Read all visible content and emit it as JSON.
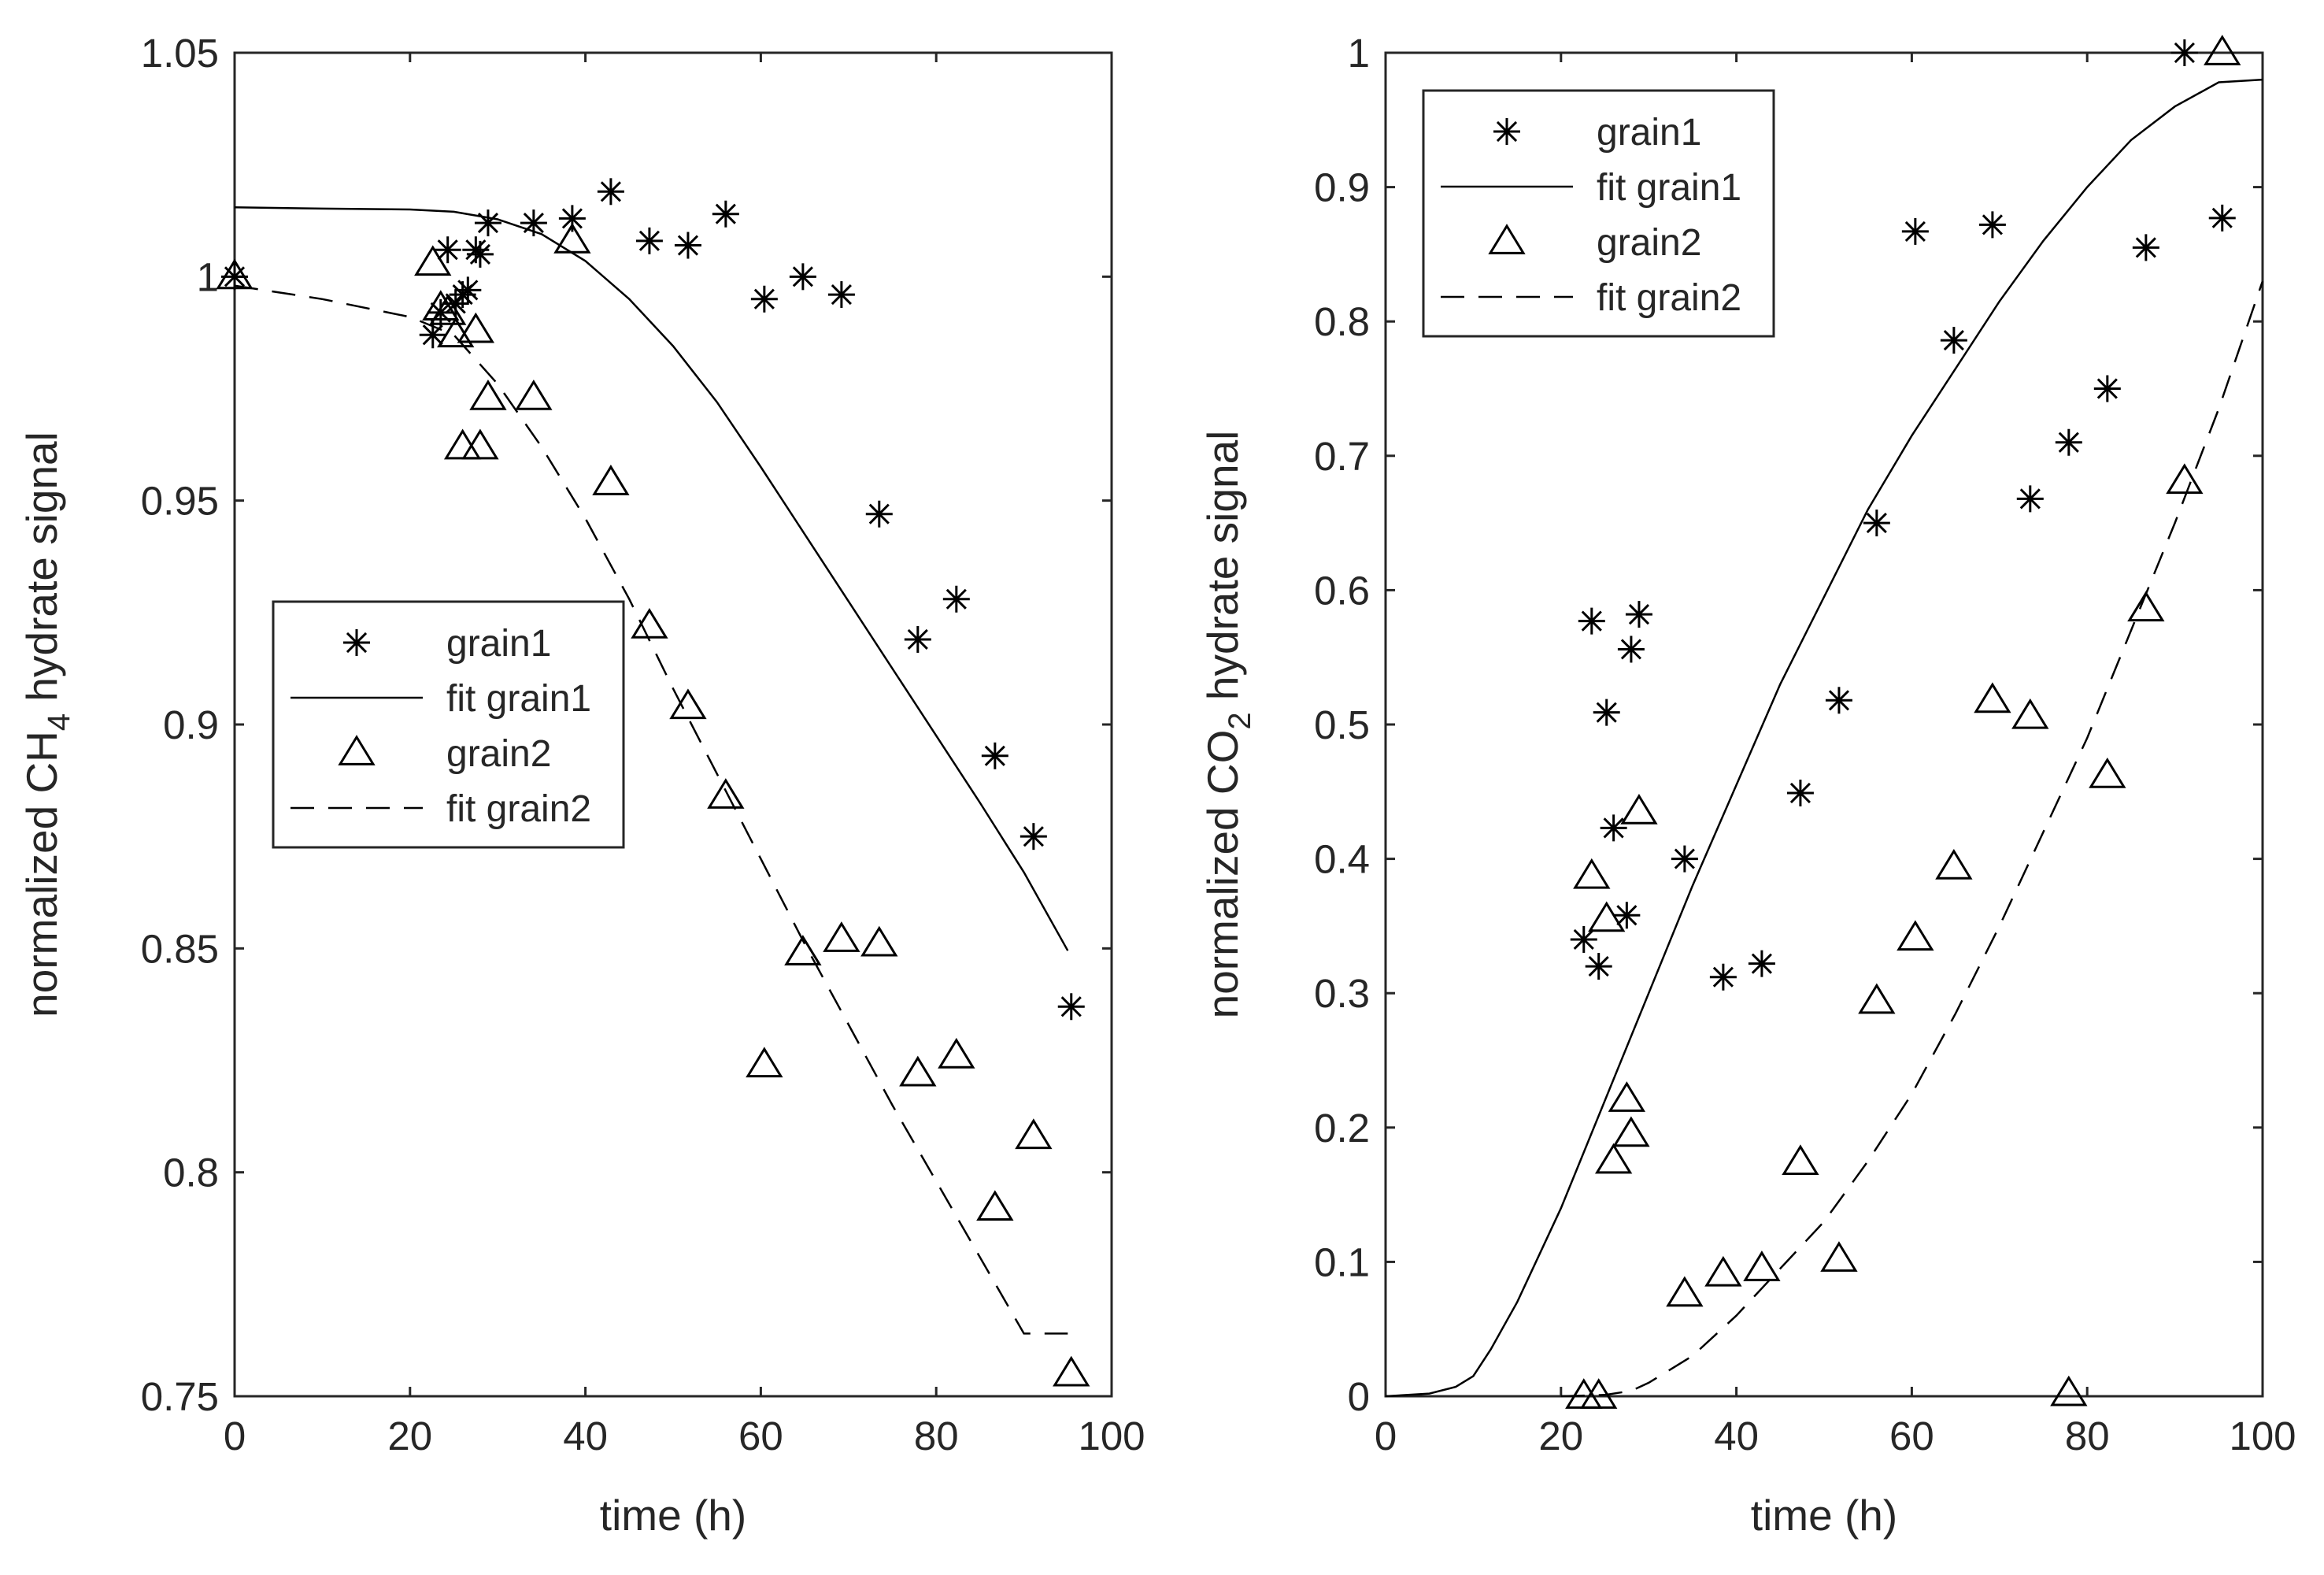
{
  "chart_data": [
    {
      "type": "scatter",
      "id": "ch4",
      "xlabel": "time (h)",
      "ylabel_prefix": "normalized CH",
      "ylabel_sub": "4",
      "ylabel_suffix": " hydrate signal",
      "xlim": [
        0,
        100
      ],
      "ylim": [
        0.75,
        1.05
      ],
      "xticks": [
        0,
        20,
        40,
        60,
        80,
        100
      ],
      "xtick_labels": [
        "0",
        "20",
        "40",
        "60",
        "80",
        "100"
      ],
      "yticks": [
        0.75,
        0.8,
        0.85,
        0.9,
        0.95,
        1,
        1.05
      ],
      "ytick_labels": [
        "0.75",
        "0.8",
        "0.85",
        "0.9",
        "0.95",
        "1",
        "1.05"
      ],
      "legend_position": "center",
      "legend": [
        {
          "label": "grain1",
          "style": "asterisk"
        },
        {
          "label": "fit grain1",
          "style": "solid"
        },
        {
          "label": "grain2",
          "style": "triangle"
        },
        {
          "label": "fit grain2",
          "style": "dashed"
        }
      ],
      "series": [
        {
          "name": "grain1",
          "marker": "asterisk",
          "points": [
            [
              0,
              1.0
            ],
            [
              22.6,
              0.987
            ],
            [
              23.5,
              0.992
            ],
            [
              24.3,
              1.006
            ],
            [
              25.2,
              0.994
            ],
            [
              26.0,
              0.996
            ],
            [
              26.6,
              0.997
            ],
            [
              27.5,
              1.006
            ],
            [
              28.0,
              1.005
            ],
            [
              28.9,
              1.012
            ],
            [
              34.1,
              1.012
            ],
            [
              38.5,
              1.013
            ],
            [
              42.9,
              1.019
            ],
            [
              47.3,
              1.008
            ],
            [
              51.7,
              1.007
            ],
            [
              56.0,
              1.014
            ],
            [
              60.4,
              0.995
            ],
            [
              64.8,
              1.0
            ],
            [
              69.2,
              0.996
            ],
            [
              73.5,
              0.947
            ],
            [
              77.9,
              0.919
            ],
            [
              82.3,
              0.928
            ],
            [
              86.7,
              0.893
            ],
            [
              91.1,
              0.875
            ],
            [
              95.4,
              0.837
            ]
          ]
        },
        {
          "name": "fit grain1",
          "line": "solid",
          "points": [
            [
              0,
              1.0155
            ],
            [
              10,
              1.0152
            ],
            [
              20,
              1.015
            ],
            [
              25,
              1.0145
            ],
            [
              30,
              1.0128
            ],
            [
              35,
              1.0095
            ],
            [
              40,
              1.0035
            ],
            [
              45,
              0.995
            ],
            [
              50,
              0.9845
            ],
            [
              55,
              0.972
            ],
            [
              60,
              0.9575
            ],
            [
              65,
              0.9425
            ],
            [
              70,
              0.9275
            ],
            [
              75,
              0.9125
            ],
            [
              80,
              0.8975
            ],
            [
              85,
              0.8825
            ],
            [
              90,
              0.867
            ],
            [
              95,
              0.8495
            ]
          ]
        },
        {
          "name": "grain2",
          "marker": "triangle",
          "points": [
            [
              0,
              1.0
            ],
            [
              22.6,
              1.003
            ],
            [
              23.5,
              0.993
            ],
            [
              24.3,
              0.992
            ],
            [
              25.2,
              0.987
            ],
            [
              26.0,
              0.962
            ],
            [
              27.5,
              0.988
            ],
            [
              28.0,
              0.962
            ],
            [
              28.9,
              0.973
            ],
            [
              34.1,
              0.973
            ],
            [
              38.5,
              1.008
            ],
            [
              42.9,
              0.954
            ],
            [
              47.3,
              0.922
            ],
            [
              51.7,
              0.904
            ],
            [
              56.0,
              0.884
            ],
            [
              64.8,
              0.849
            ],
            [
              69.2,
              0.852
            ],
            [
              73.5,
              0.851
            ],
            [
              60.4,
              0.824
            ],
            [
              77.9,
              0.822
            ],
            [
              82.3,
              0.826
            ],
            [
              86.7,
              0.792
            ],
            [
              91.1,
              0.808
            ],
            [
              95.4,
              0.755
            ]
          ]
        },
        {
          "name": "fit grain2",
          "line": "dashed",
          "points": [
            [
              0,
              0.998
            ],
            [
              10,
              0.995
            ],
            [
              20,
              0.991
            ],
            [
              25,
              0.987
            ],
            [
              30,
              0.976
            ],
            [
              35,
              0.962
            ],
            [
              40,
              0.946
            ],
            [
              45,
              0.928
            ],
            [
              50,
              0.908
            ],
            [
              55,
              0.889
            ],
            [
              60,
              0.87
            ],
            [
              65,
              0.851
            ],
            [
              70,
              0.833
            ],
            [
              75,
              0.815
            ],
            [
              80,
              0.798
            ],
            [
              85,
              0.781
            ],
            [
              90,
              0.764
            ],
            [
              95,
              0.764
            ]
          ]
        }
      ]
    },
    {
      "type": "scatter",
      "id": "co2",
      "xlabel": "time (h)",
      "ylabel_prefix": "normalized CO",
      "ylabel_sub": "2",
      "ylabel_suffix": " hydrate signal",
      "xlim": [
        0,
        100
      ],
      "ylim": [
        0,
        1
      ],
      "xticks": [
        0,
        20,
        40,
        60,
        80,
        100
      ],
      "xtick_labels": [
        "0",
        "20",
        "40",
        "60",
        "80",
        "100"
      ],
      "yticks": [
        0,
        0.1,
        0.2,
        0.3,
        0.4,
        0.5,
        0.6,
        0.7,
        0.8,
        0.9,
        1
      ],
      "ytick_labels": [
        "0",
        "0.1",
        "0.2",
        "0.3",
        "0.4",
        "0.5",
        "0.6",
        "0.7",
        "0.8",
        "0.9",
        "1"
      ],
      "legend_position": "top-left",
      "legend": [
        {
          "label": "grain1",
          "style": "asterisk"
        },
        {
          "label": "fit grain1",
          "style": "solid"
        },
        {
          "label": "grain2",
          "style": "triangle"
        },
        {
          "label": "fit grain2",
          "style": "dashed"
        }
      ],
      "series": [
        {
          "name": "grain1",
          "marker": "asterisk",
          "points": [
            [
              22.6,
              0.34
            ],
            [
              23.5,
              0.577
            ],
            [
              24.3,
              0.32
            ],
            [
              25.2,
              0.509
            ],
            [
              26.0,
              0.423
            ],
            [
              27.5,
              0.358
            ],
            [
              28.0,
              0.556
            ],
            [
              28.9,
              0.582
            ],
            [
              34.1,
              0.4
            ],
            [
              38.5,
              0.312
            ],
            [
              42.9,
              0.322
            ],
            [
              47.3,
              0.449
            ],
            [
              51.7,
              0.518
            ],
            [
              56.0,
              0.65
            ],
            [
              60.4,
              0.867
            ],
            [
              64.8,
              0.786
            ],
            [
              69.2,
              0.872
            ],
            [
              73.5,
              0.668
            ],
            [
              77.9,
              0.71
            ],
            [
              82.3,
              0.75
            ],
            [
              86.7,
              0.855
            ],
            [
              91.1,
              1.0
            ],
            [
              95.4,
              0.877
            ]
          ]
        },
        {
          "name": "fit grain1",
          "line": "solid",
          "points": [
            [
              0,
              0
            ],
            [
              5,
              0.002
            ],
            [
              8,
              0.007
            ],
            [
              10,
              0.015
            ],
            [
              12,
              0.035
            ],
            [
              15,
              0.07
            ],
            [
              20,
              0.14
            ],
            [
              25,
              0.22
            ],
            [
              30,
              0.3
            ],
            [
              35,
              0.38
            ],
            [
              40,
              0.455
            ],
            [
              45,
              0.53
            ],
            [
              50,
              0.595
            ],
            [
              55,
              0.66
            ],
            [
              60,
              0.715
            ],
            [
              65,
              0.765
            ],
            [
              70,
              0.815
            ],
            [
              75,
              0.86
            ],
            [
              80,
              0.9
            ],
            [
              85,
              0.935
            ],
            [
              90,
              0.96
            ],
            [
              95,
              0.978
            ],
            [
              100,
              0.98
            ]
          ]
        },
        {
          "name": "grain2",
          "marker": "triangle",
          "points": [
            [
              22.6,
              0.0
            ],
            [
              23.5,
              0.387
            ],
            [
              24.3,
              0.0
            ],
            [
              25.2,
              0.355
            ],
            [
              26.0,
              0.175
            ],
            [
              27.5,
              0.221
            ],
            [
              28.0,
              0.195
            ],
            [
              28.9,
              0.435
            ],
            [
              34.1,
              0.076
            ],
            [
              38.5,
              0.091
            ],
            [
              42.9,
              0.095
            ],
            [
              47.3,
              0.174
            ],
            [
              51.7,
              0.102
            ],
            [
              56.0,
              0.294
            ],
            [
              60.4,
              0.341
            ],
            [
              64.8,
              0.394
            ],
            [
              69.2,
              0.518
            ],
            [
              73.5,
              0.506
            ],
            [
              77.9,
              0.002
            ],
            [
              82.3,
              0.462
            ],
            [
              86.7,
              0.586
            ],
            [
              91.1,
              0.681
            ],
            [
              95.4,
              1.0
            ]
          ]
        },
        {
          "name": "fit grain2",
          "line": "dashed",
          "points": [
            [
              20,
              0
            ],
            [
              25,
              0.001
            ],
            [
              28,
              0.004
            ],
            [
              30,
              0.01
            ],
            [
              35,
              0.03
            ],
            [
              40,
              0.06
            ],
            [
              45,
              0.095
            ],
            [
              50,
              0.13
            ],
            [
              55,
              0.175
            ],
            [
              60,
              0.225
            ],
            [
              65,
              0.285
            ],
            [
              70,
              0.35
            ],
            [
              75,
              0.42
            ],
            [
              80,
              0.49
            ],
            [
              85,
              0.57
            ],
            [
              90,
              0.65
            ],
            [
              95,
              0.735
            ],
            [
              100,
              0.83
            ]
          ]
        }
      ]
    }
  ]
}
